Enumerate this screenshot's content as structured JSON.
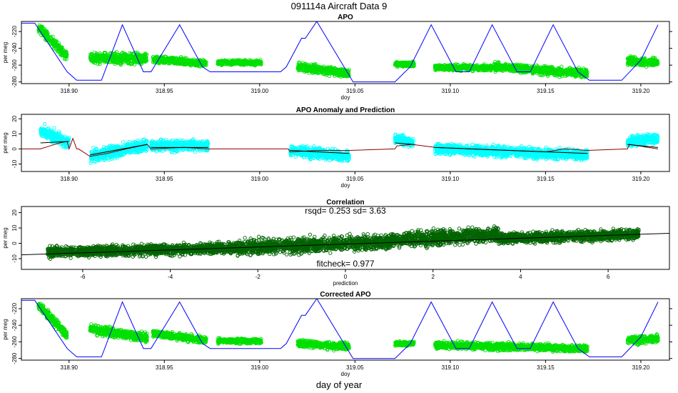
{
  "page": {
    "title": "091114a    Aircraft Data 9",
    "bottom_xlabel": "day of year"
  },
  "colors": {
    "green_points": "#00e000",
    "cyan_points": "#00ffff",
    "dark_green_points": "#006400",
    "blue_line": "#0000ff",
    "brown_line": "#8b0000",
    "black_line": "#000000"
  },
  "chart_data": [
    {
      "id": "apo",
      "type": "scatter",
      "title": "APO",
      "xlabel": "doy",
      "ylabel": "per meg",
      "xlim": [
        318.875,
        319.215
      ],
      "ylim": [
        -282,
        -208
      ],
      "xticks": [
        318.9,
        318.95,
        319.0,
        319.05,
        319.1,
        319.15,
        319.2
      ],
      "xtick_labels": [
        "318.90",
        "318.95",
        "319.00",
        "319.05",
        "319.10",
        "319.15",
        "319.20"
      ],
      "yticks": [
        -280,
        -260,
        -240,
        -220
      ],
      "ytick_labels": [
        "-280",
        "-260",
        "-240",
        "-220"
      ],
      "series": [
        {
          "name": "APO points",
          "kind": "points",
          "color": "#00e000",
          "segments": [
            {
              "x0": 318.884,
              "x1": 318.899,
              "y0": -215,
              "y1": -250,
              "spread": 8
            },
            {
              "x0": 318.911,
              "x1": 318.941,
              "y0": -252,
              "y1": -252,
              "spread": 9
            },
            {
              "x0": 318.944,
              "x1": 318.972,
              "y0": -253,
              "y1": -258,
              "spread": 6
            },
            {
              "x0": 318.978,
              "x1": 319.001,
              "y0": -257,
              "y1": -257,
              "spread": 4
            },
            {
              "x0": 319.02,
              "x1": 319.047,
              "y0": -262,
              "y1": -270,
              "spread": 7
            },
            {
              "x0": 319.071,
              "x1": 319.081,
              "y0": -259,
              "y1": -259,
              "spread": 4
            },
            {
              "x0": 319.092,
              "x1": 319.122,
              "y0": -263,
              "y1": -263,
              "spread": 5
            },
            {
              "x0": 319.123,
              "x1": 319.172,
              "y0": -262,
              "y1": -270,
              "spread": 7
            },
            {
              "x0": 319.193,
              "x1": 319.209,
              "y0": -255,
              "y1": -257,
              "spread": 7
            }
          ]
        },
        {
          "name": "model",
          "kind": "line",
          "color": "#0000ff",
          "x": [
            318.875,
            318.882,
            318.899,
            318.904,
            318.917,
            318.928,
            318.939,
            318.943,
            318.958,
            318.97,
            318.974,
            319.011,
            319.014,
            319.022,
            319.024,
            319.03,
            319.049,
            319.071,
            319.079,
            319.09,
            319.103,
            319.11,
            319.122,
            319.135,
            319.142,
            319.154,
            319.167,
            319.173,
            319.19,
            319.2,
            319.209
          ],
          "y": [
            -210,
            -210,
            -268,
            -278,
            -278,
            -212,
            -268,
            -268,
            -212,
            -262,
            -268,
            -268,
            -262,
            -228,
            -228,
            -208,
            -280,
            -280,
            -262,
            -212,
            -268,
            -268,
            -212,
            -268,
            -268,
            -212,
            -268,
            -278,
            -278,
            -254,
            -212
          ]
        }
      ]
    },
    {
      "id": "anomaly",
      "type": "scatter",
      "title": "APO Anomaly and Prediction",
      "xlabel": "doy",
      "ylabel": "per meg",
      "xlim": [
        318.875,
        319.215
      ],
      "ylim": [
        -15,
        23
      ],
      "xticks": [
        318.9,
        318.95,
        319.0,
        319.05,
        319.1,
        319.15,
        319.2
      ],
      "xtick_labels": [
        "318.90",
        "318.95",
        "319.00",
        "319.05",
        "319.10",
        "319.15",
        "319.20"
      ],
      "yticks": [
        -10,
        0,
        10,
        20
      ],
      "ytick_labels": [
        "-10",
        "0",
        "10",
        "20"
      ],
      "series": [
        {
          "name": "anomaly points",
          "kind": "points",
          "color": "#00ffff",
          "segments": [
            {
              "x0": 318.885,
              "x1": 318.9,
              "y0": 12,
              "y1": 4,
              "spread": 6
            },
            {
              "x0": 318.911,
              "x1": 318.941,
              "y0": -5,
              "y1": 3,
              "spread": 6
            },
            {
              "x0": 318.943,
              "x1": 318.973,
              "y0": 2,
              "y1": 2,
              "spread": 5
            },
            {
              "x0": 319.016,
              "x1": 319.047,
              "y0": -1,
              "y1": -5,
              "spread": 5
            },
            {
              "x0": 319.071,
              "x1": 319.081,
              "y0": 7,
              "y1": 4,
              "spread": 5
            },
            {
              "x0": 319.092,
              "x1": 319.172,
              "y0": 0,
              "y1": -4,
              "spread": 5
            },
            {
              "x0": 319.193,
              "x1": 319.209,
              "y0": 5,
              "y1": 7,
              "spread": 5
            }
          ]
        },
        {
          "name": "prediction",
          "kind": "line",
          "color": "#8b0000",
          "x": [
            318.875,
            318.885,
            318.89,
            318.895,
            318.899,
            318.9,
            318.902,
            318.904,
            318.905,
            318.911,
            318.92,
            318.93,
            318.941,
            318.943,
            318.96,
            318.973,
            319.015,
            319.016,
            319.03,
            319.047,
            319.071,
            319.072,
            319.08,
            319.092,
            319.11,
            319.13,
            319.15,
            319.16,
            319.172,
            319.193,
            319.194,
            319.209
          ],
          "y": [
            0,
            0,
            2,
            4,
            5,
            0,
            7,
            0,
            0,
            -5,
            -3,
            0,
            3,
            0,
            1,
            0,
            0,
            -2,
            -1,
            -1,
            0,
            2,
            3,
            1,
            0,
            -1,
            -2,
            0,
            -1,
            0,
            3,
            0
          ]
        }
      ]
    },
    {
      "id": "correlation",
      "type": "scatter",
      "title": "Correlation",
      "annotation_top": "rsqd= 0.253 sd= 3.63",
      "annotation_bottom": "fitcheck= 0.977",
      "xlabel": "prediction",
      "ylabel": "per meg",
      "xlim": [
        -7.4,
        7.4
      ],
      "ylim": [
        -17,
        24
      ],
      "xticks": [
        -6,
        -4,
        -2,
        0,
        2,
        4,
        6
      ],
      "xtick_labels": [
        "-6",
        "-4",
        "-2",
        "0",
        "2",
        "4",
        "6"
      ],
      "yticks": [
        -10,
        0,
        10,
        20
      ],
      "ytick_labels": [
        "-10",
        "0",
        "10",
        "20"
      ],
      "fit": {
        "slope": 0.95,
        "intercept": -0.5
      },
      "series": [
        {
          "name": "anomaly vs prediction",
          "kind": "points",
          "color": "#006400",
          "segments": [
            {
              "x0": -6.8,
              "x1": -2.5,
              "y0": -6,
              "y1": -3,
              "spread": 5
            },
            {
              "x0": -2.5,
              "x1": 1.0,
              "y0": -3,
              "y1": 1,
              "spread": 7
            },
            {
              "x0": 1.0,
              "x1": 3.5,
              "y0": 2,
              "y1": 6,
              "spread": 7
            },
            {
              "x0": 3.5,
              "x1": 6.7,
              "y0": 3,
              "y1": 6,
              "spread": 5
            }
          ]
        }
      ]
    },
    {
      "id": "corrected",
      "type": "scatter",
      "title": "Corrected APO",
      "xlabel": "doy",
      "ylabel": "per meg",
      "xlim": [
        318.875,
        319.215
      ],
      "ylim": [
        -282,
        -208
      ],
      "xticks": [
        318.9,
        318.95,
        319.0,
        319.05,
        319.1,
        319.15,
        319.2
      ],
      "xtick_labels": [
        "318.90",
        "318.95",
        "319.00",
        "319.05",
        "319.10",
        "319.15",
        "319.20"
      ],
      "yticks": [
        -280,
        -260,
        -240,
        -220
      ],
      "ytick_labels": [
        "-280",
        "-260",
        "-240",
        "-220"
      ],
      "series": [
        {
          "name": "corrected APO points",
          "kind": "points",
          "color": "#00e000",
          "segments": [
            {
              "x0": 318.884,
              "x1": 318.899,
              "y0": -215,
              "y1": -252,
              "spread": 8
            },
            {
              "x0": 318.911,
              "x1": 318.941,
              "y0": -245,
              "y1": -255,
              "spread": 8
            },
            {
              "x0": 318.944,
              "x1": 318.972,
              "y0": -250,
              "y1": -258,
              "spread": 6
            },
            {
              "x0": 318.978,
              "x1": 319.001,
              "y0": -259,
              "y1": -259,
              "spread": 4
            },
            {
              "x0": 319.02,
              "x1": 319.047,
              "y0": -262,
              "y1": -266,
              "spread": 6
            },
            {
              "x0": 319.071,
              "x1": 319.081,
              "y0": -262,
              "y1": -262,
              "spread": 4
            },
            {
              "x0": 319.092,
              "x1": 319.172,
              "y0": -264,
              "y1": -268,
              "spread": 6
            },
            {
              "x0": 319.193,
              "x1": 319.209,
              "y0": -258,
              "y1": -256,
              "spread": 7
            }
          ]
        },
        {
          "name": "model",
          "kind": "line",
          "color": "#0000ff",
          "x": [
            318.875,
            318.882,
            318.899,
            318.904,
            318.917,
            318.928,
            318.939,
            318.943,
            318.958,
            318.97,
            318.974,
            319.011,
            319.014,
            319.022,
            319.024,
            319.03,
            319.049,
            319.071,
            319.079,
            319.09,
            319.103,
            319.11,
            319.122,
            319.135,
            319.142,
            319.154,
            319.167,
            319.173,
            319.19,
            319.2,
            319.209
          ],
          "y": [
            -210,
            -210,
            -268,
            -278,
            -278,
            -212,
            -268,
            -268,
            -212,
            -262,
            -268,
            -268,
            -262,
            -228,
            -228,
            -208,
            -280,
            -280,
            -262,
            -212,
            -268,
            -268,
            -212,
            -268,
            -268,
            -212,
            -268,
            -278,
            -278,
            -254,
            -212
          ]
        }
      ]
    }
  ]
}
